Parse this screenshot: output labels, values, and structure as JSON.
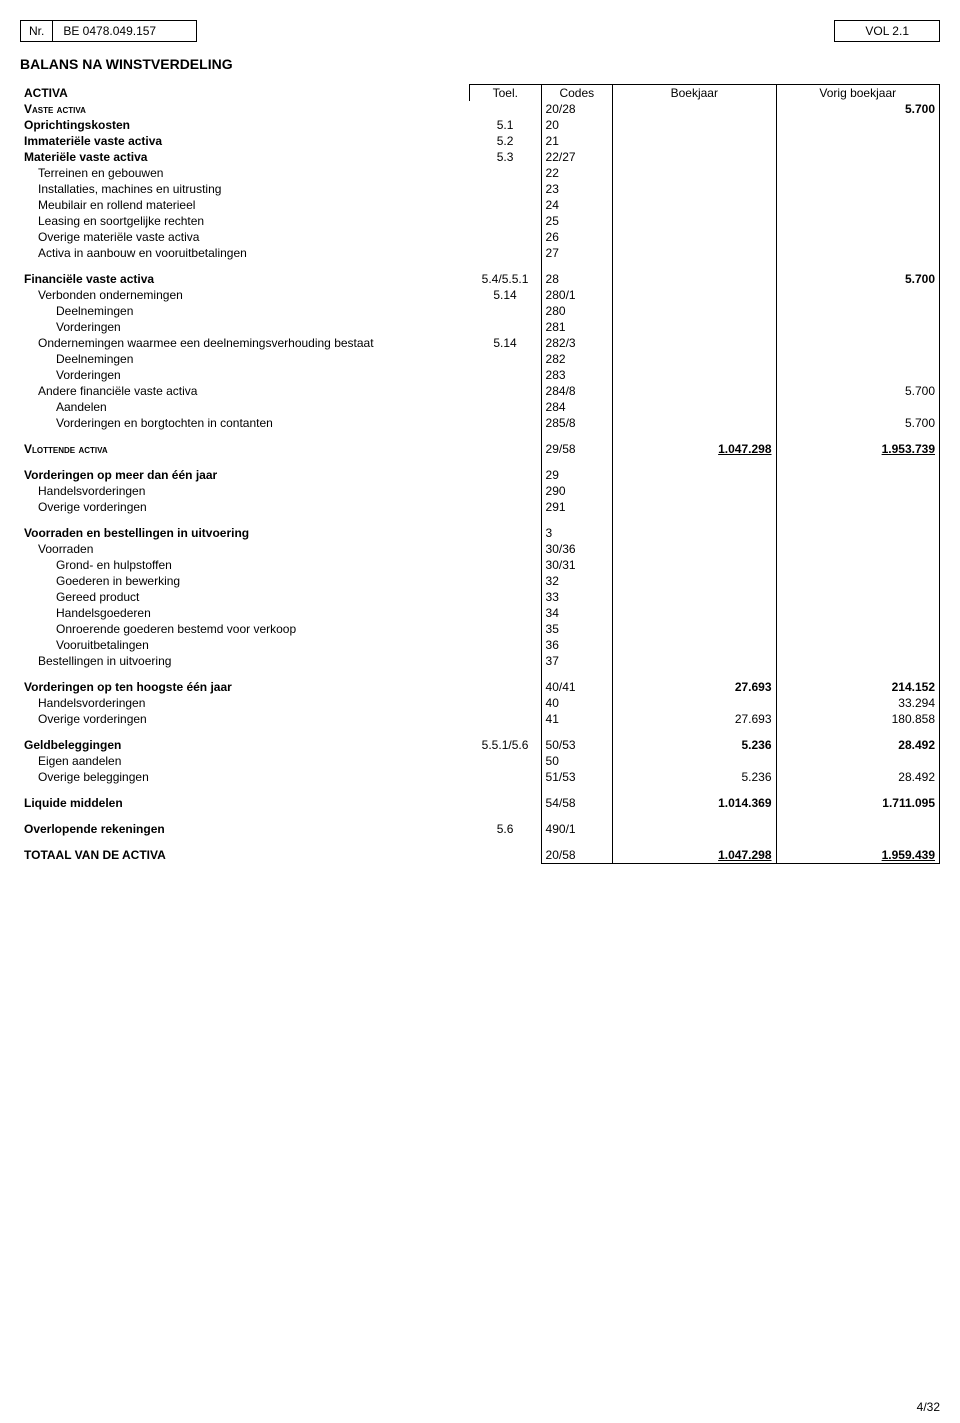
{
  "header": {
    "nr_label": "Nr.",
    "nr_value": "BE 0478.049.157",
    "vol": "VOL 2.1"
  },
  "section_title": "BALANS NA WINSTVERDELING",
  "cols": {
    "activa": "ACTIVA",
    "toel": "Toel.",
    "codes": "Codes",
    "boekjaar": "Boekjaar",
    "vorig": "Vorig boekjaar"
  },
  "rows": [
    {
      "label": "Vaste activa",
      "cls": "caps",
      "toel": "",
      "code": "20/28",
      "by": "",
      "vy": "5.700",
      "bold": true
    },
    {
      "label": "Oprichtingskosten",
      "cls": "bold",
      "toel": "5.1",
      "code": "20",
      "by": "",
      "vy": ""
    },
    {
      "label": "Immateriële vaste activa",
      "cls": "bold",
      "toel": "5.2",
      "code": "21",
      "by": "",
      "vy": ""
    },
    {
      "label": "Materiële vaste activa",
      "cls": "bold",
      "toel": "5.3",
      "code": "22/27",
      "by": "",
      "vy": ""
    },
    {
      "label": "Terreinen en gebouwen",
      "indent": 1,
      "code": "22",
      "by": "",
      "vy": ""
    },
    {
      "label": "Installaties, machines en uitrusting",
      "indent": 1,
      "code": "23",
      "by": "",
      "vy": ""
    },
    {
      "label": "Meubilair en rollend materieel",
      "indent": 1,
      "code": "24",
      "by": "",
      "vy": ""
    },
    {
      "label": "Leasing en soortgelijke rechten",
      "indent": 1,
      "code": "25",
      "by": "",
      "vy": ""
    },
    {
      "label": "Overige materiële vaste activa",
      "indent": 1,
      "code": "26",
      "by": "",
      "vy": ""
    },
    {
      "label": "Activa in aanbouw en vooruitbetalingen",
      "indent": 1,
      "code": "27",
      "by": "",
      "vy": ""
    },
    {
      "label": "Financiële vaste activa",
      "cls": "bold",
      "toel": "5.4/5.5.1",
      "code": "28",
      "by": "",
      "vy": "5.700",
      "bold": true
    },
    {
      "label": "Verbonden ondernemingen",
      "indent": 1,
      "toel": "5.14",
      "code": "280/1",
      "by": "",
      "vy": ""
    },
    {
      "label": "Deelnemingen",
      "indent": 2,
      "code": "280",
      "by": "",
      "vy": ""
    },
    {
      "label": "Vorderingen",
      "indent": 2,
      "code": "281",
      "by": "",
      "vy": ""
    },
    {
      "label": "Ondernemingen waarmee een deelnemingsverhouding bestaat",
      "indent": 1,
      "toel": "5.14",
      "code": "282/3",
      "by": "",
      "vy": ""
    },
    {
      "label": "Deelnemingen",
      "indent": 2,
      "code": "282",
      "by": "",
      "vy": ""
    },
    {
      "label": "Vorderingen",
      "indent": 2,
      "code": "283",
      "by": "",
      "vy": ""
    },
    {
      "label": "Andere financiële vaste activa",
      "indent": 1,
      "code": "284/8",
      "by": "",
      "vy": "5.700"
    },
    {
      "label": "Aandelen",
      "indent": 2,
      "code": "284",
      "by": "",
      "vy": ""
    },
    {
      "label": "Vorderingen en borgtochten in contanten",
      "indent": 2,
      "code": "285/8",
      "by": "",
      "vy": "5.700"
    },
    {
      "label": "Vlottende activa",
      "cls": "caps",
      "code": "29/58",
      "by": "1.047.298",
      "vy": "1.953.739",
      "bold": true,
      "underline": true
    },
    {
      "label": "Vorderingen op meer dan één jaar",
      "cls": "bold",
      "code": "29",
      "by": "",
      "vy": ""
    },
    {
      "label": "Handelsvorderingen",
      "indent": 1,
      "code": "290",
      "by": "",
      "vy": ""
    },
    {
      "label": "Overige vorderingen",
      "indent": 1,
      "code": "291",
      "by": "",
      "vy": ""
    },
    {
      "label": "Voorraden en bestellingen in uitvoering",
      "cls": "bold",
      "code": "3",
      "by": "",
      "vy": ""
    },
    {
      "label": "Voorraden",
      "indent": 1,
      "code": "30/36",
      "by": "",
      "vy": ""
    },
    {
      "label": "Grond- en hulpstoffen",
      "indent": 2,
      "code": "30/31",
      "by": "",
      "vy": ""
    },
    {
      "label": "Goederen in bewerking",
      "indent": 2,
      "code": "32",
      "by": "",
      "vy": ""
    },
    {
      "label": "Gereed product",
      "indent": 2,
      "code": "33",
      "by": "",
      "vy": ""
    },
    {
      "label": "Handelsgoederen",
      "indent": 2,
      "code": "34",
      "by": "",
      "vy": ""
    },
    {
      "label": "Onroerende goederen bestemd voor verkoop",
      "indent": 2,
      "code": "35",
      "by": "",
      "vy": ""
    },
    {
      "label": "Vooruitbetalingen",
      "indent": 2,
      "code": "36",
      "by": "",
      "vy": ""
    },
    {
      "label": "Bestellingen in uitvoering",
      "indent": 1,
      "code": "37",
      "by": "",
      "vy": ""
    },
    {
      "label": "Vorderingen op ten hoogste één jaar",
      "cls": "bold",
      "code": "40/41",
      "by": "27.693",
      "vy": "214.152",
      "bold": true
    },
    {
      "label": "Handelsvorderingen",
      "indent": 1,
      "code": "40",
      "by": "",
      "vy": "33.294"
    },
    {
      "label": "Overige vorderingen",
      "indent": 1,
      "code": "41",
      "by": "27.693",
      "vy": "180.858"
    },
    {
      "label": "Geldbeleggingen",
      "cls": "bold",
      "toel": "5.5.1/5.6",
      "code": "50/53",
      "by": "5.236",
      "vy": "28.492",
      "bold": true
    },
    {
      "label": "Eigen aandelen",
      "indent": 1,
      "code": "50",
      "by": "",
      "vy": ""
    },
    {
      "label": "Overige beleggingen",
      "indent": 1,
      "code": "51/53",
      "by": "5.236",
      "vy": "28.492"
    },
    {
      "label": "Liquide middelen",
      "cls": "bold",
      "code": "54/58",
      "by": "1.014.369",
      "vy": "1.711.095",
      "bold": true
    },
    {
      "label": "Overlopende rekeningen",
      "cls": "bold",
      "toel": "5.6",
      "code": "490/1",
      "by": "",
      "vy": ""
    },
    {
      "label": "TOTAAL VAN DE ACTIVA",
      "cls": "bold",
      "code": "20/58",
      "by": "1.047.298",
      "vy": "1.959.439",
      "bold": true,
      "underline": true,
      "total": true
    }
  ],
  "page": "4/32"
}
